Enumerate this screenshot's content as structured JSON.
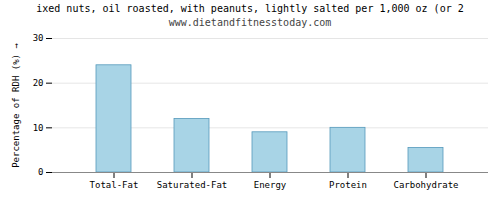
{
  "chart_data": {
    "type": "bar",
    "title": "ixed nuts, oil roasted, with peanuts, lightly salted per 1,000 oz (or 2",
    "subtitle": "www.dietandfitnesstoday.com",
    "categories": [
      "Total-Fat",
      "Saturated-Fat",
      "Energy",
      "Protein",
      "Carbohydrate"
    ],
    "values": [
      24,
      12,
      9,
      10,
      5.5
    ],
    "color": "#a8d4e6",
    "ylabel": "Percentage of RDH (%)",
    "ylim": [
      0,
      30
    ],
    "yticks": [
      0,
      10,
      20,
      30
    ],
    "grid": true
  }
}
